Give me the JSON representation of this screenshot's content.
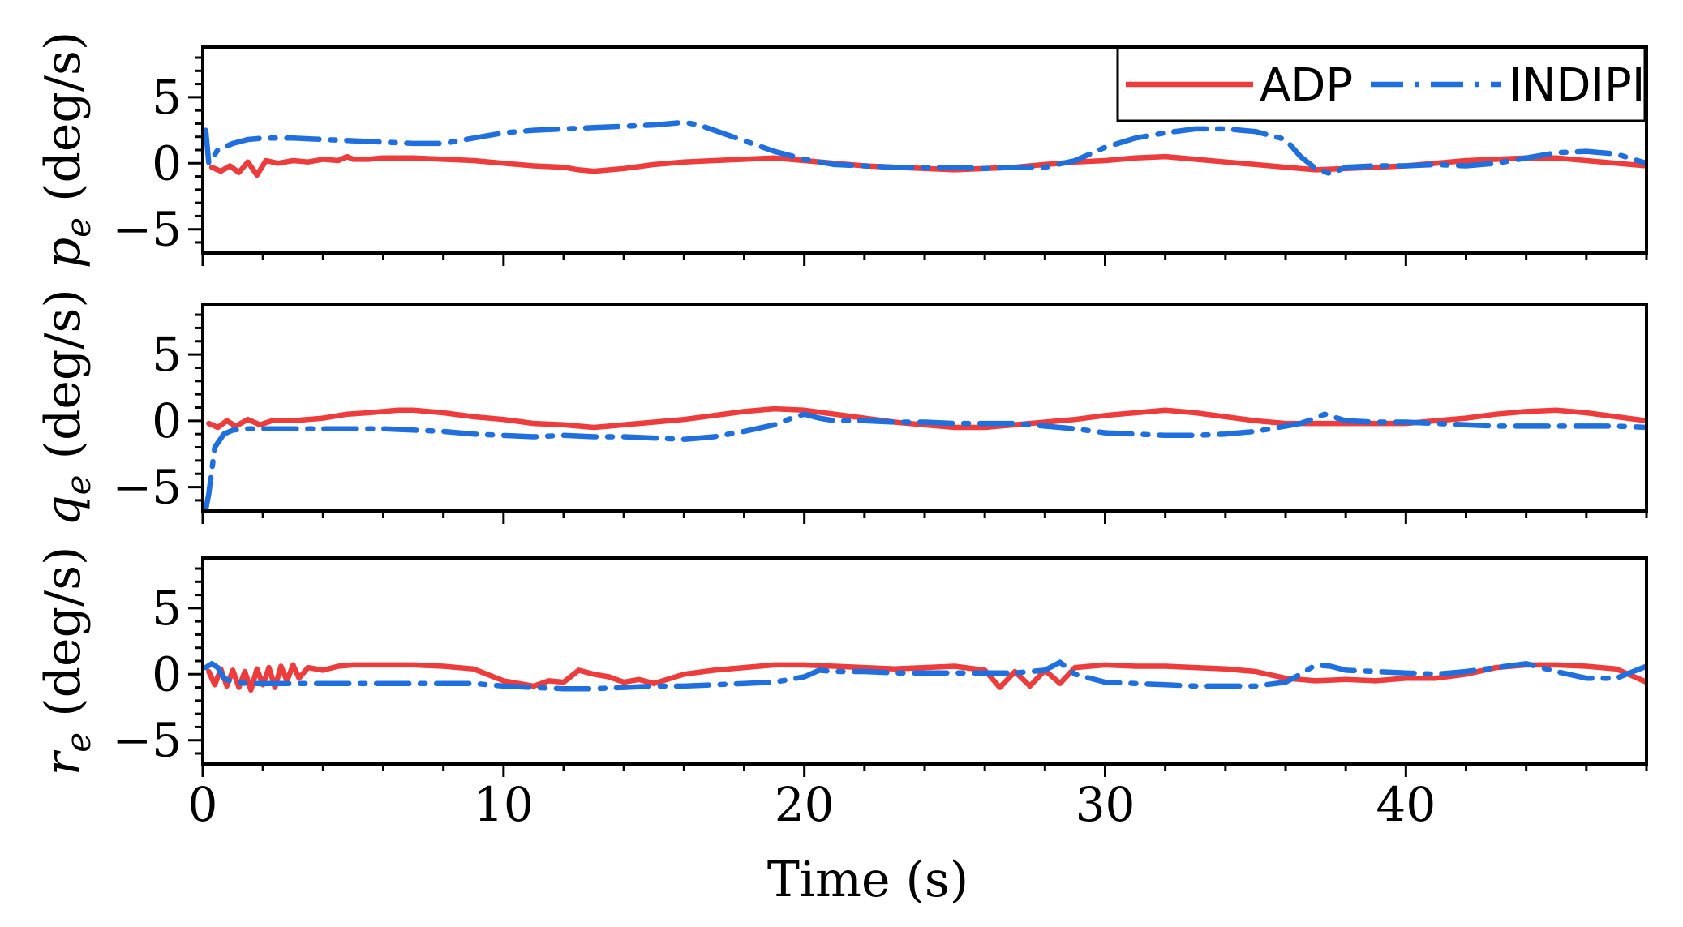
{
  "chart_data": {
    "type": "line",
    "xlabel": "Time (s)",
    "xlim": [
      0,
      48
    ],
    "xticks": [
      0,
      10,
      20,
      30,
      40
    ],
    "yticks": [
      -5,
      0,
      5
    ],
    "series_colors": {
      "ADP": "#ee3b3b",
      "INDIPI": "#1f6fde"
    },
    "legend": {
      "position": "top-right",
      "entries": [
        "ADP",
        "INDIPI"
      ]
    },
    "panels": [
      {
        "name": "p",
        "ylabel_symbol": "p",
        "ylabel_sub": "e",
        "ylabel_unit": " (deg/s)",
        "ylim": [
          -6.8,
          8.8
        ],
        "series": [
          {
            "name": "ADP",
            "style": "solid",
            "x": [
              0.3,
              0.6,
              0.9,
              1.2,
              1.5,
              1.8,
              2.1,
              2.5,
              3,
              3.5,
              4,
              4.5,
              4.8,
              5,
              5.5,
              6,
              7,
              8,
              9,
              10,
              11,
              12,
              12.5,
              13,
              14,
              15,
              16,
              17,
              18,
              19,
              20,
              21,
              22,
              23,
              24,
              25,
              26,
              27,
              28,
              29,
              30,
              31,
              32,
              33,
              34,
              35,
              36,
              37,
              38,
              39,
              40,
              41,
              42,
              43,
              44,
              45,
              46,
              47,
              48
            ],
            "y": [
              -0.3,
              -0.6,
              -0.2,
              -0.7,
              0.1,
              -0.9,
              0.2,
              0.0,
              0.2,
              0.1,
              0.3,
              0.2,
              0.5,
              0.3,
              0.3,
              0.4,
              0.4,
              0.3,
              0.2,
              0.0,
              -0.2,
              -0.3,
              -0.5,
              -0.6,
              -0.4,
              -0.1,
              0.1,
              0.2,
              0.3,
              0.4,
              0.2,
              0.0,
              -0.2,
              -0.3,
              -0.4,
              -0.5,
              -0.4,
              -0.3,
              -0.1,
              0.1,
              0.2,
              0.4,
              0.5,
              0.3,
              0.1,
              -0.1,
              -0.3,
              -0.5,
              -0.4,
              -0.3,
              -0.2,
              0.0,
              0.2,
              0.3,
              0.4,
              0.4,
              0.2,
              0.0,
              -0.2
            ]
          },
          {
            "name": "INDIPI",
            "style": "dashdot",
            "x": [
              0.1,
              0.2,
              0.5,
              1,
              1.5,
              2,
              3,
              4,
              5,
              6,
              7,
              8,
              9,
              10,
              11,
              12,
              13,
              14,
              15,
              16,
              16.5,
              17,
              18,
              19,
              20,
              21,
              22,
              23,
              24,
              25,
              26,
              27,
              28,
              29,
              30,
              31,
              32,
              33,
              34,
              35,
              36,
              36.5,
              37,
              37.5,
              38,
              39,
              40,
              41,
              42,
              43,
              44,
              45,
              46,
              47,
              48
            ],
            "y": [
              2.5,
              0.0,
              1.0,
              1.5,
              1.8,
              1.9,
              1.9,
              1.8,
              1.7,
              1.6,
              1.5,
              1.5,
              1.9,
              2.3,
              2.5,
              2.6,
              2.7,
              2.8,
              2.9,
              3.1,
              2.9,
              2.5,
              1.7,
              0.9,
              0.3,
              -0.1,
              -0.2,
              -0.3,
              -0.3,
              -0.3,
              -0.4,
              -0.3,
              -0.3,
              0.2,
              1.2,
              1.9,
              2.3,
              2.6,
              2.6,
              2.4,
              1.8,
              0.5,
              -0.4,
              -0.8,
              -0.3,
              -0.2,
              -0.2,
              -0.1,
              -0.2,
              0.0,
              0.4,
              0.8,
              0.9,
              0.7,
              0.0
            ]
          }
        ]
      },
      {
        "name": "q",
        "ylabel_symbol": "q",
        "ylabel_sub": "e",
        "ylabel_unit": " (deg/s)",
        "ylim": [
          -6.8,
          8.8
        ],
        "series": [
          {
            "name": "ADP",
            "style": "solid",
            "x": [
              0.2,
              0.5,
              0.8,
              1.1,
              1.5,
              1.9,
              2.3,
              3,
              4,
              4.8,
              5.5,
              6.5,
              7,
              8,
              9,
              10,
              11,
              12,
              13,
              14,
              15,
              16,
              17,
              18,
              19,
              20,
              21,
              22,
              23,
              24,
              25,
              26,
              27,
              28,
              29,
              30,
              31,
              32,
              33,
              34,
              35,
              36,
              37,
              38,
              39,
              40,
              41,
              42,
              43,
              44,
              45,
              46,
              47,
              48
            ],
            "y": [
              -0.2,
              -0.5,
              0.0,
              -0.4,
              0.1,
              -0.3,
              0.0,
              0.0,
              0.2,
              0.5,
              0.6,
              0.8,
              0.8,
              0.6,
              0.3,
              0.1,
              -0.2,
              -0.3,
              -0.5,
              -0.3,
              -0.1,
              0.1,
              0.4,
              0.7,
              0.9,
              0.8,
              0.5,
              0.2,
              -0.1,
              -0.3,
              -0.5,
              -0.5,
              -0.3,
              -0.1,
              0.1,
              0.4,
              0.6,
              0.8,
              0.6,
              0.3,
              0.0,
              -0.2,
              -0.2,
              -0.2,
              -0.2,
              -0.2,
              0.0,
              0.2,
              0.5,
              0.7,
              0.8,
              0.6,
              0.3,
              0.0
            ]
          },
          {
            "name": "INDIPI",
            "style": "dashdot",
            "x": [
              0.1,
              0.2,
              0.4,
              0.7,
              1,
              1.5,
              2,
              3,
              4,
              5,
              6,
              7,
              8,
              9,
              10,
              11,
              12,
              13,
              14,
              15,
              16,
              17,
              18,
              19,
              19.7,
              20,
              20.5,
              21,
              22,
              23,
              24,
              25,
              26,
              27,
              28,
              29,
              30,
              31,
              32,
              33,
              34,
              35,
              36,
              36.5,
              37,
              37.3,
              38,
              39,
              40,
              41,
              42,
              43,
              44,
              45,
              46,
              47,
              48
            ],
            "y": [
              -6.7,
              -5.5,
              -2.0,
              -1.0,
              -0.7,
              -0.6,
              -0.6,
              -0.6,
              -0.6,
              -0.6,
              -0.6,
              -0.7,
              -0.8,
              -1.0,
              -1.1,
              -1.2,
              -1.1,
              -1.2,
              -1.2,
              -1.3,
              -1.4,
              -1.2,
              -0.8,
              -0.3,
              0.3,
              0.5,
              0.2,
              0.0,
              0.0,
              -0.1,
              -0.1,
              -0.2,
              -0.2,
              -0.2,
              -0.4,
              -0.6,
              -0.9,
              -1.0,
              -1.1,
              -1.1,
              -1.0,
              -0.8,
              -0.4,
              -0.2,
              0.2,
              0.5,
              0.0,
              -0.1,
              -0.1,
              -0.2,
              -0.3,
              -0.4,
              -0.4,
              -0.4,
              -0.4,
              -0.4,
              -0.5
            ]
          }
        ]
      },
      {
        "name": "r",
        "ylabel_symbol": "r",
        "ylabel_sub": "e",
        "ylabel_unit": " (deg/s)",
        "ylim": [
          -6.8,
          8.8
        ],
        "series": [
          {
            "name": "ADP",
            "style": "solid",
            "x": [
              0.2,
              0.4,
              0.6,
              0.8,
              1,
              1.2,
              1.4,
              1.6,
              1.8,
              2,
              2.2,
              2.4,
              2.6,
              2.8,
              3,
              3.2,
              3.5,
              4,
              4.5,
              5,
              6,
              7,
              8,
              9,
              10,
              10.5,
              11,
              11.5,
              12,
              12.5,
              13,
              13.5,
              14,
              14.5,
              15,
              16,
              17,
              18,
              19,
              20,
              21,
              22,
              23,
              24,
              25,
              26,
              26.5,
              27,
              27.5,
              28,
              28.5,
              29,
              29.5,
              30,
              31,
              32,
              33,
              34,
              35,
              36,
              37,
              38,
              39,
              40,
              41,
              42,
              43,
              44,
              45,
              46,
              47,
              48
            ],
            "y": [
              0.2,
              -0.8,
              0.4,
              -0.9,
              0.3,
              -1.0,
              0.2,
              -1.2,
              0.4,
              -0.8,
              0.5,
              -1.0,
              0.6,
              -0.5,
              0.7,
              -0.3,
              0.5,
              0.3,
              0.6,
              0.7,
              0.7,
              0.7,
              0.6,
              0.4,
              -0.5,
              -0.7,
              -0.9,
              -0.5,
              -0.6,
              0.3,
              0.0,
              -0.2,
              -0.6,
              -0.4,
              -0.7,
              0.0,
              0.3,
              0.5,
              0.7,
              0.7,
              0.6,
              0.5,
              0.4,
              0.5,
              0.6,
              0.3,
              -1.0,
              0.2,
              -0.9,
              0.3,
              -0.7,
              0.5,
              0.6,
              0.7,
              0.6,
              0.6,
              0.5,
              0.4,
              0.2,
              -0.3,
              -0.5,
              -0.4,
              -0.5,
              -0.3,
              -0.3,
              0.0,
              0.5,
              0.7,
              0.7,
              0.6,
              0.4,
              -0.6
            ]
          },
          {
            "name": "INDIPI",
            "style": "dashdot",
            "x": [
              0.1,
              0.3,
              0.5,
              0.7,
              1,
              1.5,
              2,
              3,
              4,
              5,
              6,
              7,
              8,
              9,
              10,
              11,
              12,
              13,
              14,
              15,
              16,
              17,
              18,
              19,
              20,
              20.5,
              21,
              22,
              23,
              24,
              25,
              26,
              27,
              28,
              28.5,
              29,
              30,
              31,
              32,
              33,
              34,
              35,
              36,
              36.5,
              37,
              37.5,
              38,
              39,
              40,
              41,
              42,
              43,
              44,
              45,
              46,
              47,
              48
            ],
            "y": [
              0.5,
              0.8,
              0.5,
              -0.3,
              -0.6,
              -0.7,
              -0.7,
              -0.7,
              -0.7,
              -0.7,
              -0.7,
              -0.7,
              -0.7,
              -0.7,
              -0.9,
              -1.0,
              -1.1,
              -1.1,
              -1.0,
              -0.9,
              -0.9,
              -0.8,
              -0.7,
              -0.6,
              -0.2,
              0.3,
              0.2,
              0.2,
              0.1,
              0.1,
              0.1,
              0.1,
              0.1,
              0.3,
              0.9,
              0.0,
              -0.6,
              -0.7,
              -0.8,
              -0.9,
              -0.9,
              -0.9,
              -0.6,
              0.0,
              0.7,
              0.6,
              0.3,
              0.2,
              0.1,
              0.0,
              0.2,
              0.5,
              0.8,
              0.2,
              -0.3,
              -0.3,
              0.6
            ]
          }
        ]
      }
    ]
  }
}
